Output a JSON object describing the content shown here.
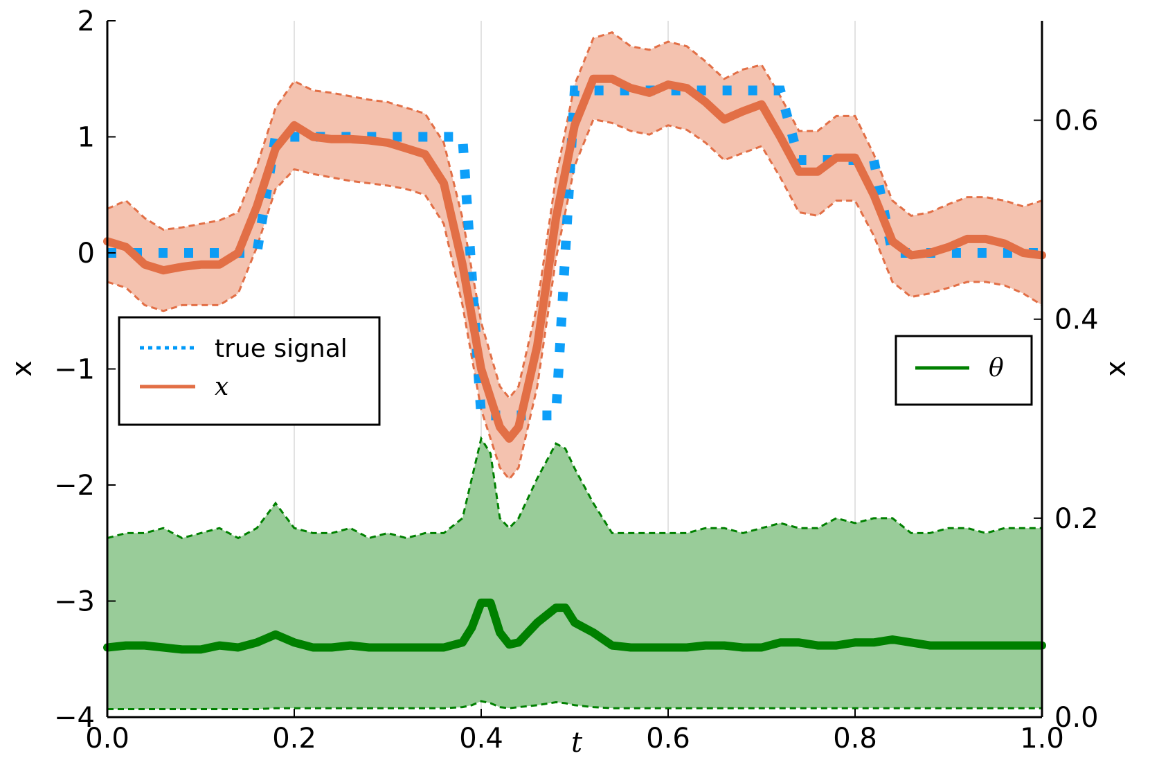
{
  "chart_data": {
    "type": "line",
    "xlabel": "t",
    "ylabel_left": "x",
    "ylabel_right": "x",
    "xlim": [
      0.0,
      1.0
    ],
    "ylim_left": [
      -4,
      2
    ],
    "ylim_right": [
      0.0,
      0.7
    ],
    "x_ticks": [
      0.0,
      0.2,
      0.4,
      0.6,
      0.8,
      1.0
    ],
    "x_tick_labels": [
      "0.0",
      "0.2",
      "0.4",
      "0.6",
      "0.8",
      "1.0"
    ],
    "y_left_ticks": [
      -4,
      -3,
      -2,
      -1,
      0,
      1,
      2
    ],
    "y_left_tick_labels": [
      "−4",
      "−3",
      "−2",
      "−1",
      "0",
      "1",
      "2"
    ],
    "y_right_ticks": [
      0.0,
      0.2,
      0.4,
      0.6
    ],
    "y_right_tick_labels": [
      "0.0",
      "0.2",
      "0.4",
      "0.6"
    ],
    "grid": "vertical",
    "legend_left": {
      "placement": "middle-left",
      "entries": [
        {
          "label": "true signal",
          "color": "#009AF9",
          "style": "dotted"
        },
        {
          "label": "x",
          "color": "#E26F46",
          "style": "solid"
        }
      ]
    },
    "legend_right": {
      "placement": "middle-right",
      "entries": [
        {
          "label": "θ",
          "color": "#008000",
          "style": "solid"
        }
      ]
    },
    "colors": {
      "true_signal": "#009AF9",
      "x": "#E26F46",
      "x_band": "#F4C2AF",
      "theta": "#008000",
      "theta_band": "#99CC99"
    },
    "series": [
      {
        "name": "true signal",
        "axis": "left",
        "x": [
          0.0,
          0.16,
          0.18,
          0.38,
          0.4,
          0.48,
          0.5,
          0.72,
          0.74,
          0.82,
          0.84,
          1.0
        ],
        "values": [
          0,
          0,
          1,
          1,
          -1.4,
          -1.4,
          1.4,
          1.4,
          0.8,
          0.8,
          0,
          0
        ]
      },
      {
        "name": "x",
        "axis": "left",
        "x": [
          0.0,
          0.02,
          0.04,
          0.06,
          0.08,
          0.1,
          0.12,
          0.14,
          0.16,
          0.18,
          0.2,
          0.22,
          0.24,
          0.26,
          0.28,
          0.3,
          0.32,
          0.34,
          0.36,
          0.38,
          0.4,
          0.42,
          0.43,
          0.44,
          0.46,
          0.48,
          0.5,
          0.52,
          0.54,
          0.56,
          0.58,
          0.6,
          0.62,
          0.64,
          0.66,
          0.68,
          0.7,
          0.72,
          0.74,
          0.76,
          0.78,
          0.8,
          0.82,
          0.84,
          0.86,
          0.88,
          0.9,
          0.92,
          0.94,
          0.96,
          0.98,
          1.0
        ],
        "values": [
          0.1,
          0.05,
          -0.1,
          -0.15,
          -0.12,
          -0.1,
          -0.1,
          0.0,
          0.4,
          0.9,
          1.1,
          1.0,
          0.98,
          0.98,
          0.97,
          0.95,
          0.9,
          0.85,
          0.6,
          -0.1,
          -1.0,
          -1.5,
          -1.6,
          -1.5,
          -0.8,
          0.3,
          1.1,
          1.5,
          1.5,
          1.42,
          1.38,
          1.45,
          1.42,
          1.3,
          1.15,
          1.22,
          1.28,
          1.0,
          0.7,
          0.7,
          0.82,
          0.82,
          0.5,
          0.1,
          -0.02,
          0.0,
          0.05,
          0.12,
          0.12,
          0.08,
          0.0,
          -0.02
        ],
        "lower": [
          -0.25,
          -0.3,
          -0.45,
          -0.5,
          -0.45,
          -0.45,
          -0.45,
          -0.35,
          0.05,
          0.55,
          0.72,
          0.68,
          0.65,
          0.62,
          0.6,
          0.58,
          0.55,
          0.5,
          0.25,
          -0.45,
          -1.35,
          -1.85,
          -1.95,
          -1.85,
          -1.15,
          -0.05,
          0.75,
          1.15,
          1.12,
          1.05,
          1.02,
          1.1,
          1.06,
          0.95,
          0.8,
          0.86,
          0.92,
          0.65,
          0.35,
          0.32,
          0.45,
          0.45,
          0.15,
          -0.25,
          -0.38,
          -0.35,
          -0.3,
          -0.25,
          -0.25,
          -0.28,
          -0.35,
          -0.45
        ],
        "upper": [
          0.38,
          0.45,
          0.3,
          0.2,
          0.22,
          0.25,
          0.28,
          0.35,
          0.75,
          1.25,
          1.48,
          1.4,
          1.38,
          1.35,
          1.32,
          1.3,
          1.25,
          1.2,
          0.95,
          0.3,
          -0.6,
          -1.15,
          -1.25,
          -1.15,
          -0.45,
          0.65,
          1.45,
          1.85,
          1.9,
          1.78,
          1.75,
          1.82,
          1.78,
          1.65,
          1.5,
          1.58,
          1.62,
          1.35,
          1.05,
          1.05,
          1.18,
          1.18,
          0.85,
          0.45,
          0.32,
          0.35,
          0.42,
          0.48,
          0.48,
          0.45,
          0.4,
          0.45
        ]
      },
      {
        "name": "θ",
        "axis": "right",
        "x": [
          0.0,
          0.02,
          0.04,
          0.06,
          0.08,
          0.1,
          0.12,
          0.14,
          0.16,
          0.18,
          0.2,
          0.22,
          0.24,
          0.26,
          0.28,
          0.3,
          0.32,
          0.34,
          0.36,
          0.38,
          0.39,
          0.4,
          0.41,
          0.42,
          0.43,
          0.44,
          0.46,
          0.48,
          0.49,
          0.5,
          0.52,
          0.54,
          0.56,
          0.58,
          0.6,
          0.62,
          0.64,
          0.66,
          0.68,
          0.7,
          0.72,
          0.74,
          0.76,
          0.78,
          0.8,
          0.82,
          0.84,
          0.86,
          0.88,
          0.9,
          0.92,
          0.94,
          0.96,
          0.98,
          1.0
        ],
        "values": [
          0.07,
          0.072,
          0.072,
          0.07,
          0.068,
          0.068,
          0.072,
          0.07,
          0.075,
          0.083,
          0.075,
          0.07,
          0.07,
          0.072,
          0.07,
          0.07,
          0.07,
          0.07,
          0.07,
          0.075,
          0.09,
          0.115,
          0.115,
          0.085,
          0.073,
          0.075,
          0.095,
          0.11,
          0.11,
          0.095,
          0.085,
          0.072,
          0.07,
          0.07,
          0.07,
          0.07,
          0.072,
          0.072,
          0.07,
          0.07,
          0.075,
          0.075,
          0.072,
          0.072,
          0.075,
          0.075,
          0.078,
          0.075,
          0.072,
          0.072,
          0.072,
          0.072,
          0.072,
          0.072,
          0.072
        ],
        "lower": [
          0.008,
          0.008,
          0.008,
          0.008,
          0.008,
          0.008,
          0.008,
          0.008,
          0.008,
          0.009,
          0.009,
          0.009,
          0.009,
          0.009,
          0.009,
          0.009,
          0.009,
          0.009,
          0.009,
          0.01,
          0.012,
          0.016,
          0.014,
          0.01,
          0.009,
          0.01,
          0.012,
          0.015,
          0.014,
          0.012,
          0.01,
          0.009,
          0.009,
          0.009,
          0.009,
          0.009,
          0.009,
          0.009,
          0.009,
          0.009,
          0.009,
          0.009,
          0.009,
          0.009,
          0.009,
          0.009,
          0.009,
          0.009,
          0.009,
          0.009,
          0.009,
          0.009,
          0.009,
          0.009,
          0.009
        ],
        "upper": [
          0.18,
          0.185,
          0.185,
          0.19,
          0.18,
          0.185,
          0.19,
          0.18,
          0.19,
          0.215,
          0.19,
          0.185,
          0.185,
          0.19,
          0.18,
          0.185,
          0.18,
          0.185,
          0.185,
          0.2,
          0.24,
          0.28,
          0.265,
          0.2,
          0.19,
          0.2,
          0.24,
          0.275,
          0.27,
          0.25,
          0.215,
          0.185,
          0.185,
          0.185,
          0.185,
          0.185,
          0.19,
          0.19,
          0.185,
          0.19,
          0.195,
          0.19,
          0.19,
          0.2,
          0.195,
          0.2,
          0.2,
          0.185,
          0.185,
          0.19,
          0.19,
          0.185,
          0.19,
          0.19,
          0.19
        ]
      }
    ]
  }
}
